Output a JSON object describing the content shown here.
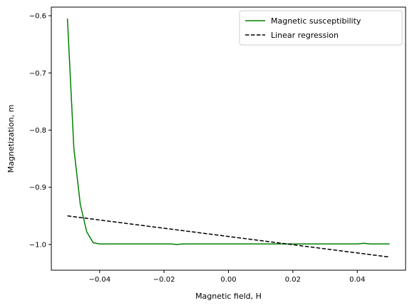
{
  "chart_data": {
    "type": "line",
    "title": "",
    "xlabel": "Magnetic field, H",
    "ylabel": "Magnetization, m",
    "xlim": [
      -0.055,
      0.055
    ],
    "ylim": [
      -1.045,
      -0.585
    ],
    "xticks": [
      -0.04,
      -0.02,
      0.0,
      0.02,
      0.04
    ],
    "xtick_labels": [
      "−0.04",
      "−0.02",
      "0.00",
      "0.02",
      "0.04"
    ],
    "yticks": [
      -1.0,
      -0.9,
      -0.8,
      -0.7,
      -0.6
    ],
    "ytick_labels": [
      "−1.0",
      "−0.9",
      "−0.8",
      "−0.7",
      "−0.6"
    ],
    "grid": false,
    "legend_position": "top-right",
    "series": [
      {
        "name": "Magnetic susceptibility",
        "color": "#008000",
        "style": "solid",
        "x": [
          -0.05,
          -0.048,
          -0.046,
          -0.044,
          -0.042,
          -0.04,
          -0.038,
          -0.036,
          -0.034,
          -0.032,
          -0.03,
          -0.028,
          -0.026,
          -0.024,
          -0.022,
          -0.02,
          -0.018,
          -0.016,
          -0.014,
          -0.012,
          -0.01,
          -0.008,
          -0.006,
          -0.004,
          -0.002,
          0.0,
          0.002,
          0.004,
          0.006,
          0.008,
          0.01,
          0.012,
          0.014,
          0.016,
          0.018,
          0.02,
          0.022,
          0.024,
          0.026,
          0.028,
          0.03,
          0.032,
          0.034,
          0.036,
          0.038,
          0.04,
          0.042,
          0.044,
          0.046,
          0.048,
          0.05
        ],
        "y": [
          -0.605,
          -0.832,
          -0.93,
          -0.978,
          -0.997,
          -0.999,
          -0.999,
          -0.999,
          -0.999,
          -0.999,
          -0.999,
          -0.999,
          -0.999,
          -0.999,
          -0.999,
          -0.999,
          -0.999,
          -1.0,
          -0.999,
          -0.999,
          -0.999,
          -0.999,
          -0.999,
          -0.999,
          -0.999,
          -0.999,
          -0.999,
          -0.999,
          -0.999,
          -0.999,
          -0.999,
          -0.999,
          -0.999,
          -0.999,
          -0.999,
          -0.999,
          -0.999,
          -0.999,
          -0.999,
          -0.999,
          -0.999,
          -0.999,
          -0.999,
          -0.999,
          -0.999,
          -0.999,
          -0.998,
          -0.999,
          -0.999,
          -0.999,
          -0.999
        ]
      },
      {
        "name": "Linear regression",
        "color": "#000000",
        "style": "dashed",
        "x": [
          -0.05,
          0.05
        ],
        "y": [
          -0.95,
          -1.022
        ]
      }
    ]
  }
}
